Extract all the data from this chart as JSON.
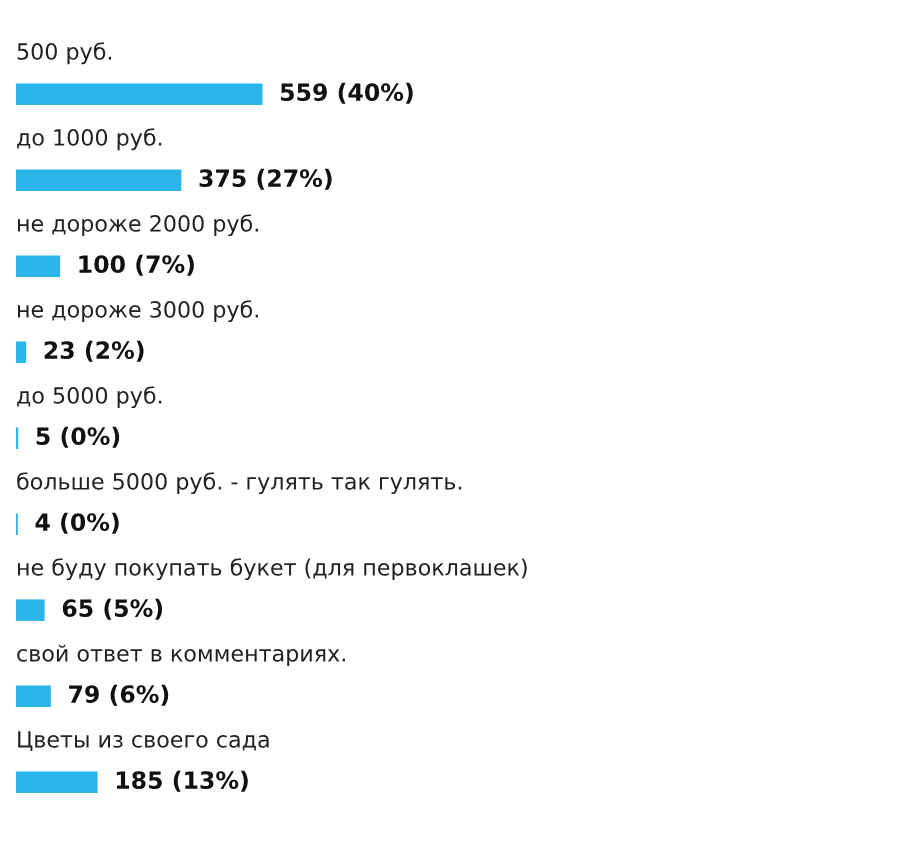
{
  "chart_data": {
    "type": "bar",
    "orientation": "horizontal",
    "categories": [
      "500 руб.",
      "до 1000 руб.",
      "не дороже 2000 руб.",
      "не дороже 3000 руб.",
      "до 5000 руб.",
      "больше 5000 руб. - гулять так гулять.",
      "не буду покупать букет (для первоклашек)",
      "свой ответ в комментариях.",
      "Цветы из своего сада"
    ],
    "values": [
      559,
      375,
      100,
      23,
      5,
      4,
      65,
      79,
      185
    ],
    "value_labels": [
      "559 (40%)",
      "375 (27%)",
      "100 (7%)",
      "23 (2%)",
      "5 (0%)",
      "4 (0%)",
      "65 (5%)",
      "79 (6%)",
      "185 (13%)"
    ],
    "color": "#2bb5ea",
    "tick_labels": false
  }
}
